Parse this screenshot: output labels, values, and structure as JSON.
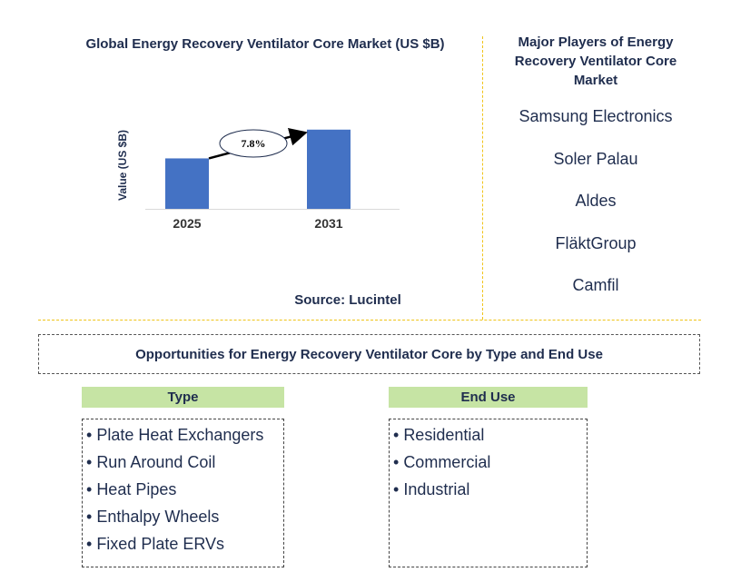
{
  "chart": {
    "title": "Global Energy Recovery Ventilator Core Market (US $B)",
    "source": "Source: Lucintel",
    "cagr_label": "7.8%"
  },
  "chart_data": {
    "type": "bar",
    "title": "Global Energy Recovery Ventilator Core Market (US $B)",
    "categories": [
      "2025",
      "2031"
    ],
    "values": [
      1.0,
      1.57
    ],
    "ylabel": "Value (US $B)",
    "xlabel": "",
    "ylim": [
      0,
      1.62
    ],
    "grid": false,
    "bar_color": "#4472c4",
    "annotation": "7.8%"
  },
  "players": {
    "title": "Major Players of Energy Recovery Ventilator Core Market",
    "items": [
      "Samsung Electronics",
      "Soler Palau",
      "Aldes",
      "FläktGroup",
      "Camfil"
    ]
  },
  "opportunities": {
    "title": "Opportunities for Energy Recovery Ventilator Core by Type and End Use"
  },
  "type": {
    "header": "Type",
    "items": [
      "Plate Heat Exchangers",
      "Run Around Coil",
      "Heat Pipes",
      "Enthalpy Wheels",
      "Fixed Plate ERVs"
    ]
  },
  "end_use": {
    "header": "End Use",
    "items": [
      "Residential",
      "Commercial",
      "Industrial"
    ]
  },
  "colors": {
    "bar": "#4472c4",
    "text": "#1f2d4e",
    "separator": "#f0c419",
    "category_header": "#c6e4a4"
  }
}
